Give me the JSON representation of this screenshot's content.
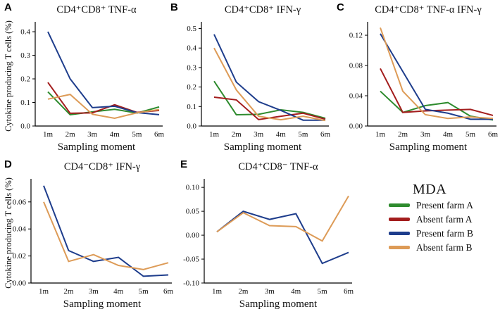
{
  "figure": {
    "ylabel": "Cytokine producing T cells (%)",
    "xlabel": "Sampling moment"
  },
  "legend": {
    "title": "MDA",
    "items": [
      {
        "label": "Present farm A",
        "color": "#2e8b2e"
      },
      {
        "label": "Absent farm A",
        "color": "#a31d1d"
      },
      {
        "label": "Present farm B",
        "color": "#1e3d8c"
      },
      {
        "label": "Absent farm B",
        "color": "#dd9b57"
      }
    ]
  },
  "chart_data": [
    {
      "id": "A",
      "panel_label": "A",
      "type": "line",
      "title": "CD4⁺CD8⁺ TNF-α",
      "xlabel": "Sampling moment",
      "ylabel": "Cytokine producing T cells (%)",
      "categories": [
        "1m",
        "2m",
        "3m",
        "4m",
        "5m",
        "6m"
      ],
      "ylim": [
        0,
        0.43
      ],
      "yticks": [
        {
          "v": 0.0,
          "label": "0.0"
        },
        {
          "v": 0.1,
          "label": "0.1"
        },
        {
          "v": 0.2,
          "label": "0.2"
        },
        {
          "v": 0.3,
          "label": "0.3"
        },
        {
          "v": 0.4,
          "label": "0.4"
        }
      ],
      "series": [
        {
          "name": "Present farm A",
          "color": "#2e8b2e",
          "values": [
            0.145,
            0.048,
            0.06,
            0.071,
            0.055,
            0.081
          ]
        },
        {
          "name": "Absent farm A",
          "color": "#a31d1d",
          "values": [
            0.185,
            0.054,
            0.056,
            0.09,
            0.058,
            0.066
          ]
        },
        {
          "name": "Present farm B",
          "color": "#1e3d8c",
          "values": [
            0.4,
            0.2,
            0.078,
            0.084,
            0.057,
            0.048
          ]
        },
        {
          "name": "Absent farm B",
          "color": "#dd9b57",
          "values": [
            0.114,
            0.134,
            0.05,
            0.033,
            0.056,
            0.07
          ]
        }
      ]
    },
    {
      "id": "B",
      "panel_label": "B",
      "type": "line",
      "title": "CD4⁺CD8⁺ IFN-γ",
      "xlabel": "Sampling moment",
      "categories": [
        "1m",
        "2m",
        "3m",
        "4m",
        "5m",
        "6m"
      ],
      "ylim": [
        0,
        0.52
      ],
      "yticks": [
        {
          "v": 0.0,
          "label": "0.0"
        },
        {
          "v": 0.1,
          "label": "0.1"
        },
        {
          "v": 0.2,
          "label": "0.2"
        },
        {
          "v": 0.3,
          "label": "0.3"
        },
        {
          "v": 0.4,
          "label": "0.4"
        },
        {
          "v": 0.5,
          "label": "0.5"
        }
      ],
      "series": [
        {
          "name": "Present farm A",
          "color": "#2e8b2e",
          "values": [
            0.23,
            0.058,
            0.06,
            0.083,
            0.07,
            0.04
          ]
        },
        {
          "name": "Absent farm A",
          "color": "#a31d1d",
          "values": [
            0.148,
            0.134,
            0.033,
            0.05,
            0.066,
            0.035
          ]
        },
        {
          "name": "Present farm B",
          "color": "#1e3d8c",
          "values": [
            0.47,
            0.225,
            0.125,
            0.08,
            0.03,
            0.03
          ]
        },
        {
          "name": "Absent farm B",
          "color": "#dd9b57",
          "values": [
            0.4,
            0.185,
            0.05,
            0.032,
            0.05,
            0.028
          ]
        }
      ]
    },
    {
      "id": "C",
      "panel_label": "C",
      "type": "line",
      "title": "CD4⁺CD8⁺ TNF-α IFN-γ",
      "xlabel": "Sampling moment",
      "categories": [
        "1m",
        "2m",
        "3m",
        "4m",
        "5m",
        "6m"
      ],
      "ylim": [
        0,
        0.134
      ],
      "yticks": [
        {
          "v": 0.0,
          "label": "0.00"
        },
        {
          "v": 0.04,
          "label": "0.04"
        },
        {
          "v": 0.08,
          "label": "0.08"
        },
        {
          "v": 0.12,
          "label": "0.12"
        }
      ],
      "series": [
        {
          "name": "Present farm A",
          "color": "#2e8b2e",
          "values": [
            0.046,
            0.018,
            0.027,
            0.031,
            0.013,
            0.008
          ]
        },
        {
          "name": "Absent farm A",
          "color": "#a31d1d",
          "values": [
            0.076,
            0.018,
            0.02,
            0.021,
            0.022,
            0.014
          ]
        },
        {
          "name": "Present farm B",
          "color": "#1e3d8c",
          "values": [
            0.122,
            0.072,
            0.022,
            0.017,
            0.009,
            0.009
          ]
        },
        {
          "name": "Absent farm B",
          "color": "#dd9b57",
          "values": [
            0.13,
            0.046,
            0.015,
            0.01,
            0.012,
            0.01
          ]
        }
      ]
    },
    {
      "id": "D",
      "panel_label": "D",
      "type": "line",
      "title": "CD4⁻CD8⁺ IFN-γ",
      "xlabel": "Sampling moment",
      "ylabel": "Cytokine producing T cells (%)",
      "categories": [
        "1m",
        "2m",
        "3m",
        "4m",
        "5m",
        "6m"
      ],
      "ylim": [
        0,
        0.075
      ],
      "yticks": [
        {
          "v": 0.0,
          "label": "0.00"
        },
        {
          "v": 0.02,
          "label": "0.02"
        },
        {
          "v": 0.04,
          "label": "0.04"
        },
        {
          "v": 0.06,
          "label": "0.06"
        }
      ],
      "series": [
        {
          "name": "Present farm B",
          "color": "#1e3d8c",
          "values": [
            0.072,
            0.024,
            0.016,
            0.019,
            0.005,
            0.006
          ]
        },
        {
          "name": "Absent farm B",
          "color": "#dd9b57",
          "values": [
            0.06,
            0.016,
            0.021,
            0.013,
            0.01,
            0.015
          ]
        }
      ]
    },
    {
      "id": "E",
      "panel_label": "E",
      "type": "line",
      "title": "CD4⁺CD8⁻ TNF-α",
      "xlabel": "Sampling moment",
      "categories": [
        "1m",
        "2m",
        "3m",
        "4m",
        "5m",
        "6m"
      ],
      "ylim": [
        -0.1,
        0.112
      ],
      "yticks": [
        {
          "v": -0.1,
          "label": "-0.10"
        },
        {
          "v": -0.05,
          "label": "-0.05"
        },
        {
          "v": 0.0,
          "label": "0.00"
        },
        {
          "v": 0.05,
          "label": "0.05"
        },
        {
          "v": 0.1,
          "label": "0.10"
        }
      ],
      "series": [
        {
          "name": "Present farm B",
          "color": "#1e3d8c",
          "values": [
            0.007,
            0.05,
            0.033,
            0.045,
            -0.059,
            -0.036
          ]
        },
        {
          "name": "Absent farm B",
          "color": "#dd9b57",
          "values": [
            0.007,
            0.047,
            0.02,
            0.018,
            -0.012,
            0.082
          ]
        }
      ]
    }
  ]
}
